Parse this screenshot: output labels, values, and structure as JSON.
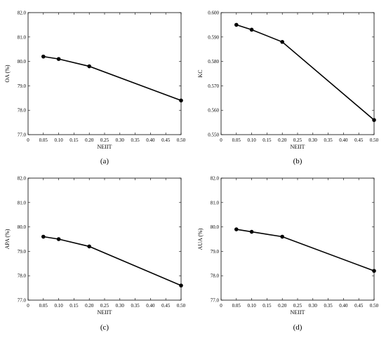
{
  "chart_data": [
    {
      "type": "line",
      "caption": "(a)",
      "xlabel": "NEIIT",
      "ylabel": "OA (%)",
      "xlim": [
        0,
        0.5
      ],
      "ylim": [
        77.0,
        82.0
      ],
      "xticks": [
        "0",
        "0.05",
        "0.10",
        "0.15",
        "0.20",
        "0.25",
        "0.30",
        "0.35",
        "0.40",
        "0.45",
        "0.50"
      ],
      "yticks": [
        "77.0",
        "78.0",
        "79.0",
        "80.0",
        "81.0",
        "82.0"
      ],
      "x": [
        0.05,
        0.1,
        0.2,
        0.5
      ],
      "y": [
        80.2,
        80.1,
        79.8,
        78.4
      ]
    },
    {
      "type": "line",
      "caption": "(b)",
      "xlabel": "NEIIT",
      "ylabel": "KC",
      "xlim": [
        0,
        0.5
      ],
      "ylim": [
        0.55,
        0.6
      ],
      "xticks": [
        "0",
        "0.05",
        "0.10",
        "0.15",
        "0.20",
        "0.25",
        "0.30",
        "0.35",
        "0.40",
        "0.45",
        "0.50"
      ],
      "yticks": [
        "0.550",
        "0.560",
        "0.570",
        "0.580",
        "0.590",
        "0.600"
      ],
      "x": [
        0.05,
        0.1,
        0.2,
        0.5
      ],
      "y": [
        0.595,
        0.593,
        0.588,
        0.556
      ]
    },
    {
      "type": "line",
      "caption": "(c)",
      "xlabel": "NEIIT",
      "ylabel": "APA (%)",
      "xlim": [
        0,
        0.5
      ],
      "ylim": [
        77.0,
        82.0
      ],
      "xticks": [
        "0",
        "0.05",
        "0.10",
        "0.15",
        "0.20",
        "0.25",
        "0.30",
        "0.35",
        "0.40",
        "0.45",
        "0.50"
      ],
      "yticks": [
        "77.0",
        "78.0",
        "79.0",
        "80.0",
        "81.0",
        "82.0"
      ],
      "x": [
        0.05,
        0.1,
        0.2,
        0.5
      ],
      "y": [
        79.6,
        79.5,
        79.2,
        77.6
      ]
    },
    {
      "type": "line",
      "caption": "(d)",
      "xlabel": "NEIIT",
      "ylabel": "AUA (%)",
      "xlim": [
        0,
        0.5
      ],
      "ylim": [
        77.0,
        82.0
      ],
      "xticks": [
        "0",
        "0.05",
        "0.10",
        "0.15",
        "0.20",
        "0.25",
        "0.30",
        "0.35",
        "0.40",
        "0.45",
        "0.50"
      ],
      "yticks": [
        "77.0",
        "78.0",
        "79.0",
        "80.0",
        "81.0",
        "82.0"
      ],
      "x": [
        0.05,
        0.1,
        0.2,
        0.5
      ],
      "y": [
        79.9,
        79.8,
        79.6,
        78.2
      ]
    }
  ]
}
